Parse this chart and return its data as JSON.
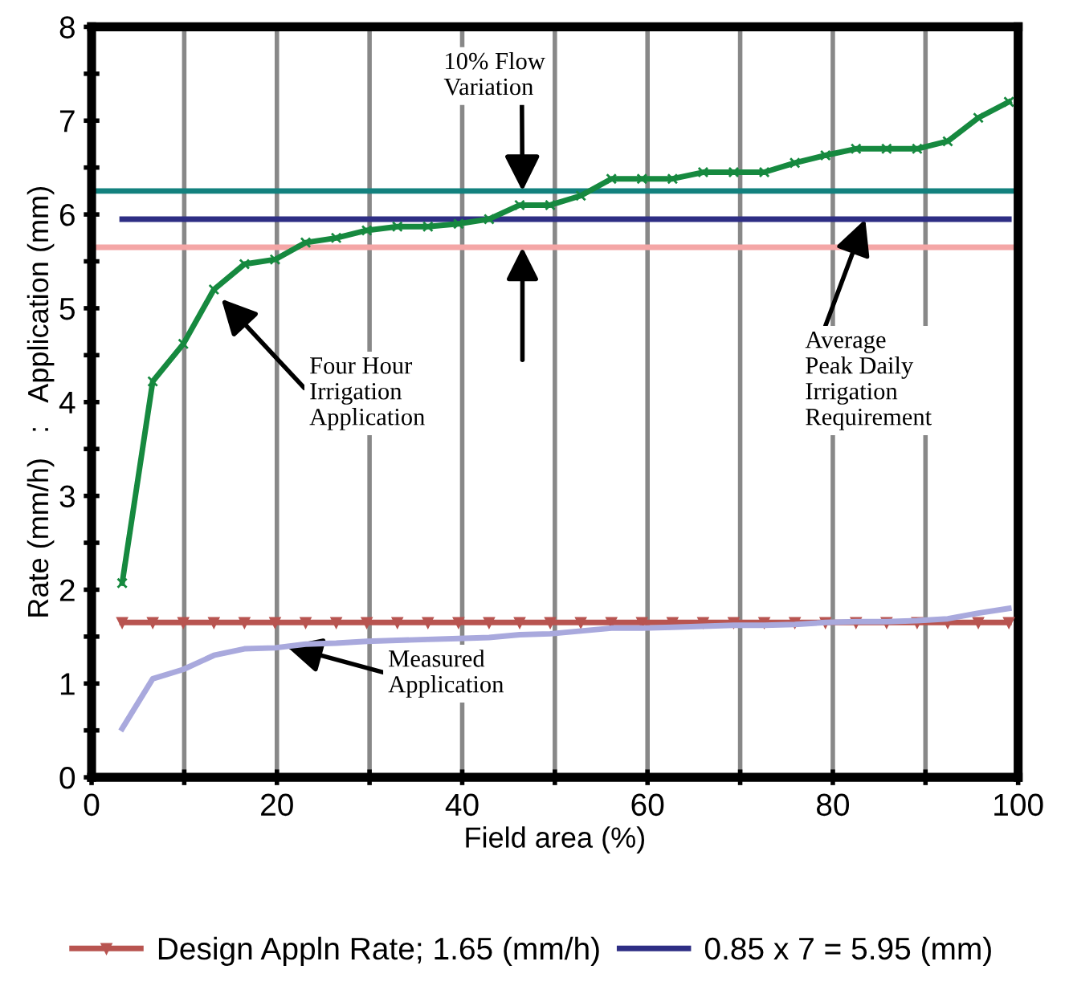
{
  "chart_data": {
    "type": "line",
    "xlabel": "Field area (%)",
    "ylabel": "Rate (mm/h)   :   Application (mm)",
    "x": [
      3.3,
      6.6,
      9.9,
      13.2,
      16.5,
      19.8,
      23.1,
      26.4,
      29.7,
      33.0,
      36.3,
      39.6,
      42.9,
      46.2,
      49.5,
      52.8,
      56.1,
      59.4,
      62.7,
      66.0,
      69.3,
      72.6,
      75.9,
      79.2,
      82.5,
      85.8,
      89.1,
      92.4,
      95.7,
      99.0
    ],
    "series": [
      {
        "name": "Design Appln Rate; 1.65 (mm/h)",
        "color": "#b85450",
        "marker": "triangle",
        "values": [
          1.65,
          1.65,
          1.65,
          1.65,
          1.65,
          1.65,
          1.65,
          1.65,
          1.65,
          1.65,
          1.65,
          1.65,
          1.65,
          1.65,
          1.65,
          1.65,
          1.65,
          1.65,
          1.65,
          1.65,
          1.65,
          1.65,
          1.65,
          1.65,
          1.65,
          1.65,
          1.65,
          1.65,
          1.65,
          1.65
        ]
      },
      {
        "name": "0.85 x 7 = 5.95 (mm)",
        "color": "#2e2e84",
        "marker": "none",
        "values": [
          5.95,
          5.95,
          5.95,
          5.95,
          5.95,
          5.95,
          5.95,
          5.95,
          5.95,
          5.95,
          5.95,
          5.95,
          5.95,
          5.95,
          5.95,
          5.95,
          5.95,
          5.95,
          5.95,
          5.95,
          5.95,
          5.95,
          5.95,
          5.95,
          5.95,
          5.95,
          5.95,
          5.95,
          5.95,
          5.95
        ]
      },
      {
        "color": "#16893f",
        "marker": "cross",
        "values": [
          2.07,
          4.22,
          4.62,
          5.2,
          5.47,
          5.52,
          5.7,
          5.75,
          5.83,
          5.87,
          5.87,
          5.9,
          5.95,
          6.1,
          6.1,
          6.2,
          6.38,
          6.38,
          6.38,
          6.45,
          6.45,
          6.45,
          6.55,
          6.63,
          6.7,
          6.7,
          6.7,
          6.78,
          7.03,
          7.2
        ]
      },
      {
        "color": "#a9a9dd",
        "marker": "none",
        "values": [
          0.52,
          1.05,
          1.15,
          1.3,
          1.37,
          1.38,
          1.42,
          1.43,
          1.45,
          1.46,
          1.47,
          1.48,
          1.49,
          1.52,
          1.53,
          1.56,
          1.59,
          1.59,
          1.6,
          1.61,
          1.62,
          1.62,
          1.63,
          1.65,
          1.66,
          1.66,
          1.67,
          1.69,
          1.75,
          1.8
        ]
      }
    ],
    "ref_lines": [
      {
        "axis": "y",
        "value": 6.25,
        "color": "#12817e"
      },
      {
        "axis": "y",
        "value": 5.65,
        "color": "#f4a6a6"
      }
    ],
    "annotations": [
      {
        "text": "10% Flow\nVariation",
        "x": 46.5,
        "y": 6.25
      },
      {
        "text": "Four Hour\nIrrigation\nApplication",
        "x": 14,
        "y": 5.1
      },
      {
        "text": "Average\nPeak Daily\nIrrigation\nRequirement",
        "x": 83.5,
        "y": 5.95
      },
      {
        "text": "Measured\nApplication",
        "x": 21,
        "y": 1.4
      }
    ],
    "xlim": [
      0,
      100
    ],
    "ylim": [
      0,
      8
    ],
    "xticks": [
      0,
      {
        "value": 10,
        "label": null
      },
      20,
      {
        "value": 30,
        "label": null
      },
      40,
      {
        "value": 50,
        "label": null
      },
      60,
      {
        "value": 70,
        "label": null
      },
      80,
      {
        "value": 90,
        "label": null
      },
      100
    ],
    "yticks": [
      0,
      {
        "value": 0.5,
        "label": null
      },
      1,
      {
        "value": 1.5,
        "label": null
      },
      2,
      {
        "value": 2.5,
        "label": null
      },
      3,
      {
        "value": 3.5,
        "label": null
      },
      4,
      {
        "value": 4.5,
        "label": null
      },
      5,
      {
        "value": 5.5,
        "label": null
      },
      6,
      {
        "value": 6.5,
        "label": null
      },
      7,
      {
        "value": 7.5,
        "label": null
      },
      8
    ],
    "grid": "x",
    "legend": "bottom"
  }
}
